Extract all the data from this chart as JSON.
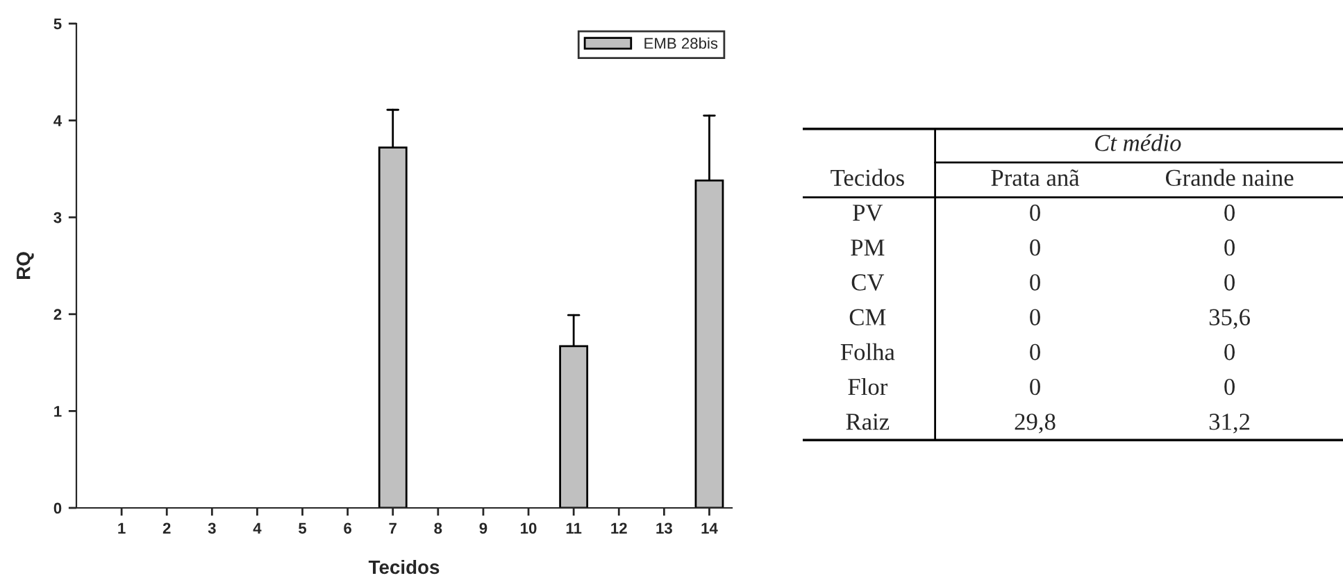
{
  "chart_data": [
    {
      "type": "bar",
      "xlabel": "Tecidos",
      "ylabel": "RQ",
      "categories": [
        "1",
        "2",
        "3",
        "4",
        "5",
        "6",
        "7",
        "8",
        "9",
        "10",
        "11",
        "12",
        "13",
        "14"
      ],
      "series": [
        {
          "name": "EMB 28bis",
          "color": "#c0c0c0",
          "values": [
            0,
            0,
            0,
            0,
            0,
            0,
            3.72,
            0,
            0,
            0,
            1.67,
            0,
            0,
            3.38
          ],
          "errors": [
            null,
            null,
            null,
            null,
            null,
            null,
            [
              3.72,
              4.11
            ],
            null,
            null,
            null,
            [
              1.67,
              1.99
            ],
            null,
            null,
            [
              3.38,
              4.05
            ]
          ]
        }
      ],
      "ylim": [
        0,
        5
      ],
      "yticks": [
        0,
        1,
        2,
        3,
        4,
        5
      ],
      "grid": false,
      "legend": "top right"
    },
    {
      "type": "other",
      "title": "Ct médio",
      "ylabel": "Tecidos",
      "categories": [
        "Prata anã",
        "Grande naine"
      ],
      "y_categories": [
        "PV",
        "PM",
        "CV",
        "CM",
        "Folha",
        "Flor",
        "Raiz"
      ],
      "cell_labels": [
        [
          "0",
          "0"
        ],
        [
          "0",
          "0"
        ],
        [
          "0",
          "0"
        ],
        [
          "0",
          "35,6"
        ],
        [
          "0",
          "0"
        ],
        [
          "0",
          "0"
        ],
        [
          "29,8",
          "31,2"
        ]
      ]
    }
  ]
}
